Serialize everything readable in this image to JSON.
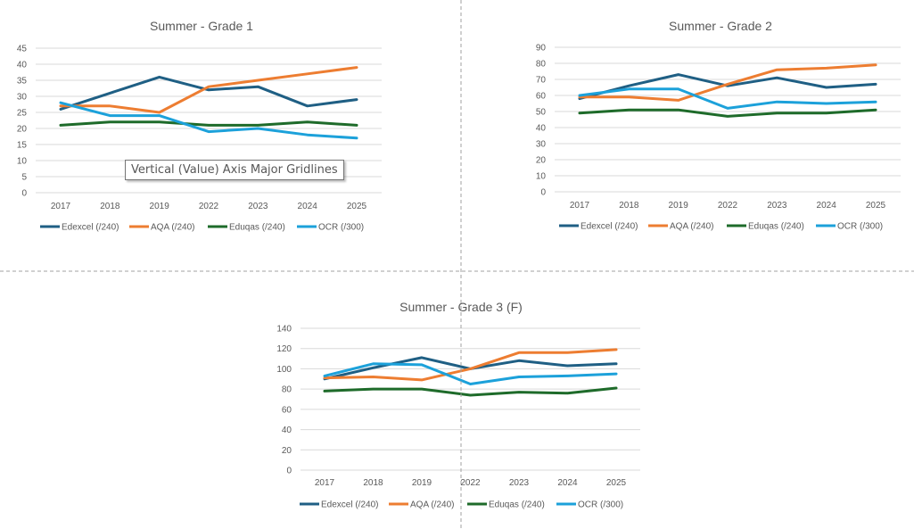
{
  "colors": {
    "Edexcel (/240)": "#1f5f84",
    "AQA (/240)": "#ed7d31",
    "Eduqas (/240)": "#1e6b2a",
    "OCR (/300)": "#1ca1da"
  },
  "tooltip": {
    "text": "Vertical (Value) Axis Major Gridlines"
  },
  "chart_data": [
    {
      "type": "line",
      "title": "Summer - Grade 1",
      "categories": [
        "2017",
        "2018",
        "2019",
        "2022",
        "2023",
        "2024",
        "2025"
      ],
      "xlabel": "",
      "ylabel": "",
      "ylim": [
        0,
        45
      ],
      "yticks": [
        0,
        5,
        10,
        15,
        20,
        25,
        30,
        35,
        40,
        45
      ],
      "grid": true,
      "legend": "bottom",
      "series": [
        {
          "name": "Edexcel (/240)",
          "values": [
            26,
            31,
            36,
            32,
            33,
            27,
            29
          ]
        },
        {
          "name": "AQA (/240)",
          "values": [
            27,
            27,
            25,
            33,
            35,
            37,
            39
          ]
        },
        {
          "name": "Eduqas (/240)",
          "values": [
            21,
            22,
            22,
            21,
            21,
            22,
            21
          ]
        },
        {
          "name": "OCR (/300)",
          "values": [
            28,
            24,
            24,
            19,
            20,
            18,
            17
          ]
        }
      ]
    },
    {
      "type": "line",
      "title": "Summer - Grade 2",
      "categories": [
        "2017",
        "2018",
        "2019",
        "2022",
        "2023",
        "2024",
        "2025"
      ],
      "xlabel": "",
      "ylabel": "",
      "ylim": [
        0,
        90
      ],
      "yticks": [
        0,
        10,
        20,
        30,
        40,
        50,
        60,
        70,
        80,
        90
      ],
      "grid": true,
      "legend": "bottom",
      "series": [
        {
          "name": "Edexcel (/240)",
          "values": [
            58,
            66,
            73,
            66,
            71,
            65,
            67
          ]
        },
        {
          "name": "AQA (/240)",
          "values": [
            59,
            59,
            57,
            67,
            76,
            77,
            79
          ]
        },
        {
          "name": "Eduqas (/240)",
          "values": [
            49,
            51,
            51,
            47,
            49,
            49,
            51
          ]
        },
        {
          "name": "OCR (/300)",
          "values": [
            60,
            64,
            64,
            52,
            56,
            55,
            56
          ]
        }
      ]
    },
    {
      "type": "line",
      "title": "Summer - Grade 3 (F)",
      "categories": [
        "2017",
        "2018",
        "2019",
        "2022",
        "2023",
        "2024",
        "2025"
      ],
      "xlabel": "",
      "ylabel": "",
      "ylim": [
        0,
        140
      ],
      "yticks": [
        0,
        20,
        40,
        60,
        80,
        100,
        120,
        140
      ],
      "grid": true,
      "legend": "bottom",
      "series": [
        {
          "name": "Edexcel (/240)",
          "values": [
            90,
            101,
            111,
            100,
            108,
            103,
            105
          ]
        },
        {
          "name": "AQA (/240)",
          "values": [
            91,
            92,
            89,
            100,
            116,
            116,
            119
          ]
        },
        {
          "name": "Eduqas (/240)",
          "values": [
            78,
            80,
            80,
            74,
            77,
            76,
            81
          ]
        },
        {
          "name": "OCR (/300)",
          "values": [
            93,
            105,
            104,
            85,
            92,
            93,
            95
          ]
        }
      ]
    }
  ]
}
